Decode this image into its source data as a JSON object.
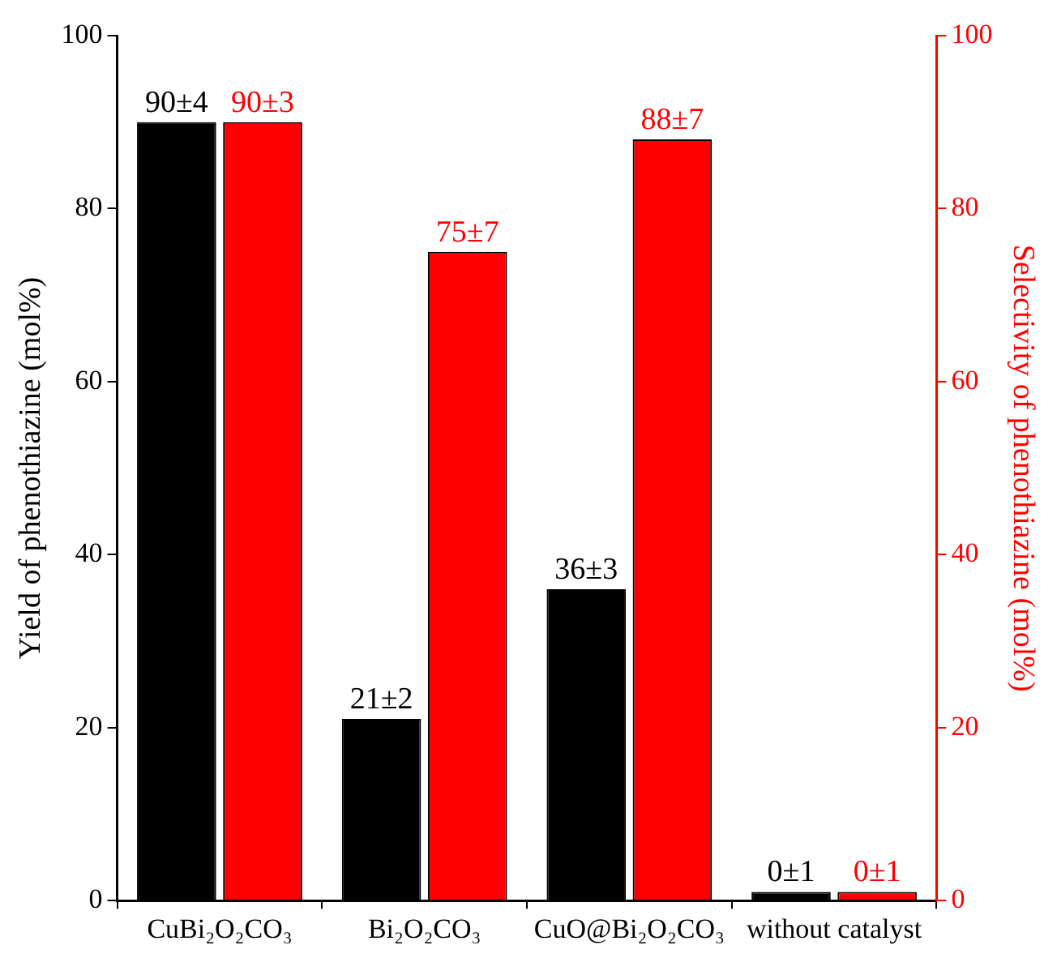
{
  "chart_data": {
    "type": "bar",
    "ylabel": "Yield of phenothiazine (mol%)",
    "y2label": "Selectivity of phenothiazine (mol%)",
    "categories": [
      "CuBi₂O₂CO₃",
      "Bi₂O₂CO₃",
      "CuO@Bi₂O₂CO₃",
      "without catalyst"
    ],
    "series": [
      {
        "color": "#000000",
        "values": [
          90,
          21,
          36,
          1
        ],
        "value_labels": [
          "90±4",
          "21±2",
          "36±3",
          "0±1"
        ]
      },
      {
        "color": "#ff0000",
        "axis": "y2",
        "values": [
          90,
          75,
          88,
          1
        ],
        "value_labels": [
          "90±3",
          "75±7",
          "88±7",
          "0±1"
        ]
      }
    ],
    "ylim": [
      0,
      100
    ],
    "yticks": [
      0,
      20,
      40,
      60,
      80,
      100
    ],
    "y2lim": [
      0,
      100
    ],
    "y2ticks": [
      0,
      20,
      40,
      60,
      80,
      100
    ],
    "grid": false,
    "legend": false
  }
}
